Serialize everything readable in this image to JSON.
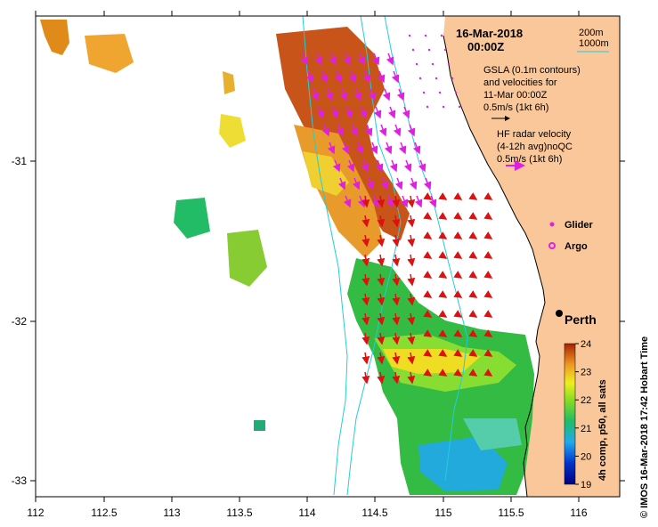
{
  "header": {
    "date": "16-Mar-2018",
    "time": "00:00Z",
    "contour_200": "200m",
    "contour_1000": "1000m"
  },
  "legend": {
    "gsla_line1": "GSLA (0.1m contours)",
    "gsla_line2": "and velocities for",
    "gsla_line3": "11-Mar 00:00Z",
    "gsla_scale": "0.5m/s (1kt 6h)",
    "hf_line1": "HF radar velocity",
    "hf_line2": "(4-12h avg)noQC",
    "hf_scale": "0.5m/s (1kt 6h)",
    "glider": "Glider",
    "argo": "Argo"
  },
  "places": {
    "perth": "Perth"
  },
  "colorbar": {
    "label": "4h comp, p50, all sats",
    "ticks": [
      "24",
      "23",
      "22",
      "21",
      "20",
      "19"
    ],
    "range": [
      19,
      24
    ]
  },
  "axes": {
    "x_ticks": [
      "112",
      "112.5",
      "113",
      "113.5",
      "114",
      "114.5",
      "115",
      "115.5",
      "116"
    ],
    "y_ticks": [
      "-31",
      "-32",
      "-33"
    ]
  },
  "credit": "© IMOS 16-Mar-2018 17:42 Hobart Time",
  "colors": {
    "land": "#f9c79a",
    "hf_vectors": "#e01010",
    "gsla_vectors": "#e020e0",
    "isobath": "#22ccdd"
  }
}
